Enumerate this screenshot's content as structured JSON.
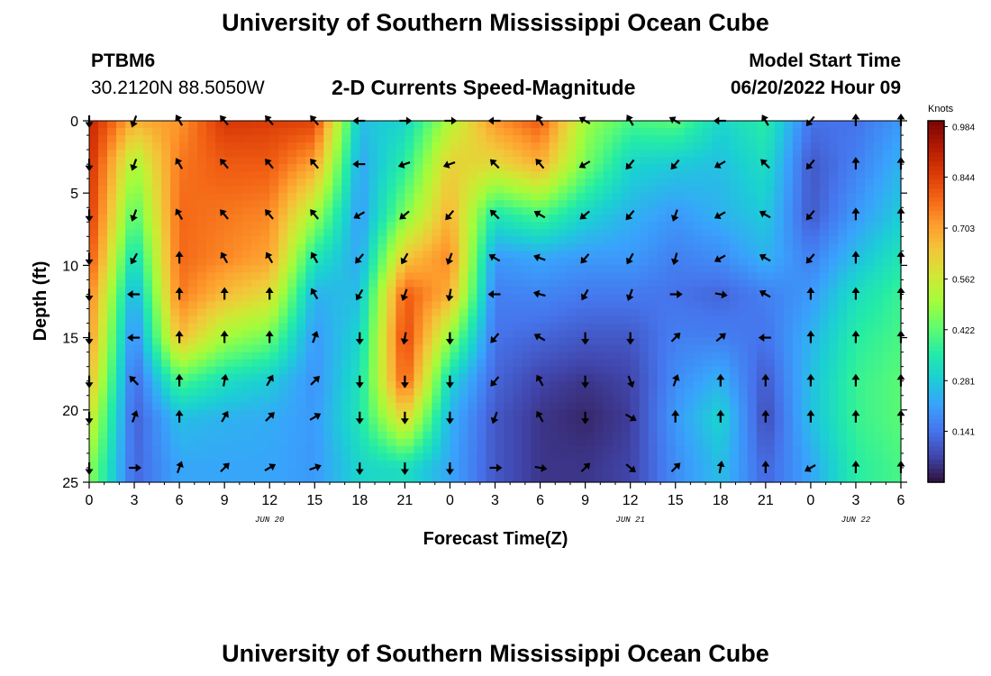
{
  "header": {
    "title": "University of Southern Mississippi Ocean Cube",
    "station_id": "PTBM6",
    "station_coords": "30.2120N  88.5050W",
    "plot_title": "2-D Currents Speed-Magnitude",
    "model_start_label": "Model Start Time",
    "model_start_value": "06/20/2022 Hour 09",
    "bottom_title": "University of Southern Mississippi Ocean Cube"
  },
  "colors": {
    "colormap": [
      "#30123b",
      "#4145ab",
      "#4675ed",
      "#39a2fc",
      "#1bcfd4",
      "#24eca6",
      "#61fc6c",
      "#a4fc3b",
      "#d1e834",
      "#f3c63a",
      "#fe9b2d",
      "#f36315",
      "#d93806",
      "#b11901",
      "#7a0403"
    ]
  },
  "chart_data": {
    "type": "heatmap",
    "title": "2-D Currents Speed-Magnitude",
    "xlabel": "Forecast Time(Z)",
    "ylabel": "Depth (ft)",
    "ylim": [
      0,
      25
    ],
    "xlim": [
      0,
      54
    ],
    "y_ticks": [
      "0",
      "5",
      "10",
      "15",
      "20",
      "25"
    ],
    "x_tick_labels": [
      "0",
      "3",
      "6",
      "9",
      "12",
      "15",
      "18",
      "21",
      "0",
      "3",
      "6",
      "9",
      "12",
      "15",
      "18",
      "21",
      "0",
      "3",
      "6"
    ],
    "date_labels": [
      {
        "label": "JUN 20",
        "hour": 12
      },
      {
        "label": "JUN 21",
        "hour": 36
      },
      {
        "label": "JUN 22",
        "hour": 51
      }
    ],
    "colorbar": {
      "label": "Knots",
      "ticks": [
        "0.984",
        "0.844",
        "0.703",
        "0.562",
        "0.422",
        "0.281",
        "0.141"
      ],
      "tick_values": [
        0.984,
        0.844,
        0.703,
        0.562,
        0.422,
        0.281,
        0.141
      ],
      "range": [
        0,
        1.0
      ]
    },
    "profile_hours": [
      0,
      3,
      6,
      9,
      12,
      15,
      18,
      21,
      24,
      27,
      30,
      33,
      36,
      39,
      42,
      45,
      48,
      51,
      54
    ],
    "depth_levels": [
      0,
      3,
      6.5,
      9.5,
      12,
      15,
      18,
      20.5,
      24
    ],
    "speed_grid": [
      [
        0.9,
        0.88,
        0.86,
        0.82,
        0.76,
        0.72,
        0.66,
        0.58,
        0.48
      ],
      [
        0.68,
        0.5,
        0.4,
        0.3,
        0.22,
        0.16,
        0.12,
        0.11,
        0.12
      ],
      [
        0.72,
        0.76,
        0.78,
        0.78,
        0.76,
        0.66,
        0.4,
        0.26,
        0.22
      ],
      [
        0.86,
        0.8,
        0.76,
        0.74,
        0.66,
        0.5,
        0.32,
        0.24,
        0.22
      ],
      [
        0.85,
        0.8,
        0.74,
        0.7,
        0.6,
        0.44,
        0.28,
        0.23,
        0.22
      ],
      [
        0.84,
        0.7,
        0.5,
        0.34,
        0.24,
        0.2,
        0.19,
        0.2,
        0.2
      ],
      [
        0.26,
        0.22,
        0.2,
        0.22,
        0.26,
        0.3,
        0.33,
        0.34,
        0.3
      ],
      [
        0.3,
        0.36,
        0.46,
        0.64,
        0.8,
        0.84,
        0.8,
        0.62,
        0.32
      ],
      [
        0.52,
        0.62,
        0.68,
        0.74,
        0.68,
        0.48,
        0.3,
        0.24,
        0.22
      ],
      [
        0.72,
        0.6,
        0.34,
        0.2,
        0.16,
        0.14,
        0.12,
        0.1,
        0.1
      ],
      [
        0.8,
        0.68,
        0.4,
        0.22,
        0.17,
        0.12,
        0.07,
        0.05,
        0.05
      ],
      [
        0.5,
        0.45,
        0.3,
        0.2,
        0.15,
        0.1,
        0.05,
        0.03,
        0.05
      ],
      [
        0.4,
        0.3,
        0.24,
        0.2,
        0.15,
        0.1,
        0.07,
        0.06,
        0.07
      ],
      [
        0.42,
        0.28,
        0.2,
        0.16,
        0.14,
        0.16,
        0.18,
        0.2,
        0.18
      ],
      [
        0.3,
        0.26,
        0.24,
        0.18,
        0.12,
        0.16,
        0.24,
        0.3,
        0.26
      ],
      [
        0.36,
        0.32,
        0.28,
        0.24,
        0.16,
        0.14,
        0.1,
        0.08,
        0.12
      ],
      [
        0.14,
        0.1,
        0.1,
        0.16,
        0.2,
        0.24,
        0.26,
        0.26,
        0.22
      ],
      [
        0.14,
        0.16,
        0.2,
        0.26,
        0.32,
        0.36,
        0.38,
        0.38,
        0.36
      ],
      [
        0.2,
        0.24,
        0.28,
        0.34,
        0.38,
        0.4,
        0.42,
        0.42,
        0.4
      ]
    ],
    "current_direction_deg": [
      [
        180,
        180,
        180,
        180,
        180,
        180,
        180,
        180,
        180
      ],
      [
        200,
        200,
        200,
        210,
        270,
        270,
        315,
        20,
        90
      ],
      [
        330,
        330,
        330,
        0,
        0,
        0,
        0,
        0,
        20
      ],
      [
        320,
        320,
        320,
        330,
        0,
        0,
        10,
        30,
        45
      ],
      [
        320,
        320,
        320,
        330,
        0,
        0,
        30,
        45,
        60
      ],
      [
        320,
        320,
        320,
        330,
        330,
        20,
        45,
        60,
        70
      ],
      [
        270,
        270,
        240,
        220,
        210,
        180,
        180,
        180,
        180
      ],
      [
        90,
        250,
        230,
        210,
        200,
        190,
        180,
        180,
        180
      ],
      [
        90,
        250,
        220,
        200,
        190,
        180,
        180,
        180,
        180
      ],
      [
        270,
        315,
        315,
        300,
        270,
        220,
        220,
        200,
        90
      ],
      [
        330,
        320,
        300,
        290,
        285,
        300,
        330,
        330,
        100
      ],
      [
        300,
        240,
        230,
        220,
        210,
        180,
        180,
        180,
        45
      ],
      [
        330,
        220,
        220,
        210,
        200,
        180,
        160,
        120,
        130
      ],
      [
        300,
        220,
        200,
        195,
        90,
        45,
        20,
        0,
        45
      ],
      [
        270,
        240,
        240,
        240,
        100,
        50,
        0,
        0,
        10
      ],
      [
        330,
        315,
        300,
        300,
        300,
        270,
        0,
        0,
        0
      ],
      [
        220,
        220,
        220,
        220,
        0,
        0,
        0,
        0,
        240
      ],
      [
        0,
        0,
        0,
        0,
        0,
        0,
        0,
        0,
        0
      ],
      [
        0,
        0,
        0,
        0,
        0,
        0,
        0,
        0,
        0
      ]
    ]
  }
}
